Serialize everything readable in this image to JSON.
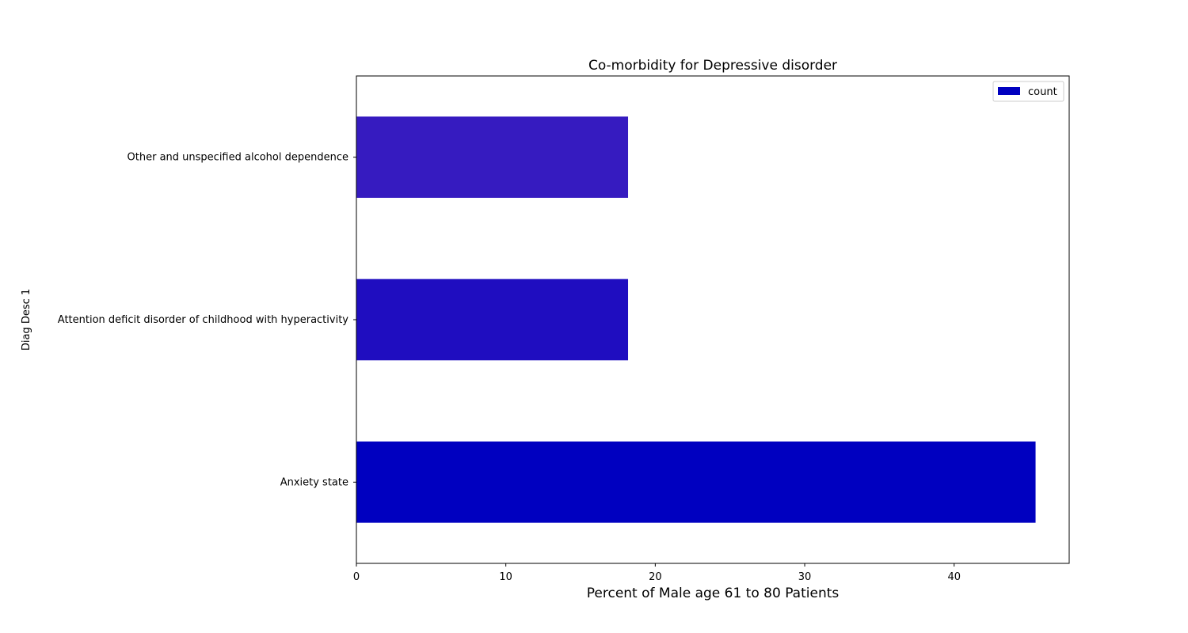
{
  "chart_data": {
    "type": "bar",
    "orientation": "horizontal",
    "title": "Co-morbidity for Depressive disorder",
    "xlabel": "Percent of Male age 61 to 80 Patients",
    "ylabel": "Diag Desc 1",
    "categories": [
      "Anxiety state",
      "Attention deficit disorder of childhood with hyperactivity",
      "Other and unspecified alcohol dependence"
    ],
    "series": [
      {
        "name": "count",
        "values": [
          45.45,
          18.18,
          18.18
        ],
        "colors": [
          "#0000c0",
          "#1f0dc0",
          "#361bc0"
        ]
      }
    ],
    "xlim": [
      0,
      47.7
    ],
    "xticks": [
      0,
      10,
      20,
      30,
      40
    ],
    "grid": false,
    "legend": {
      "position": "top-right",
      "entries": [
        "count"
      ],
      "color": "#0000c0"
    }
  }
}
